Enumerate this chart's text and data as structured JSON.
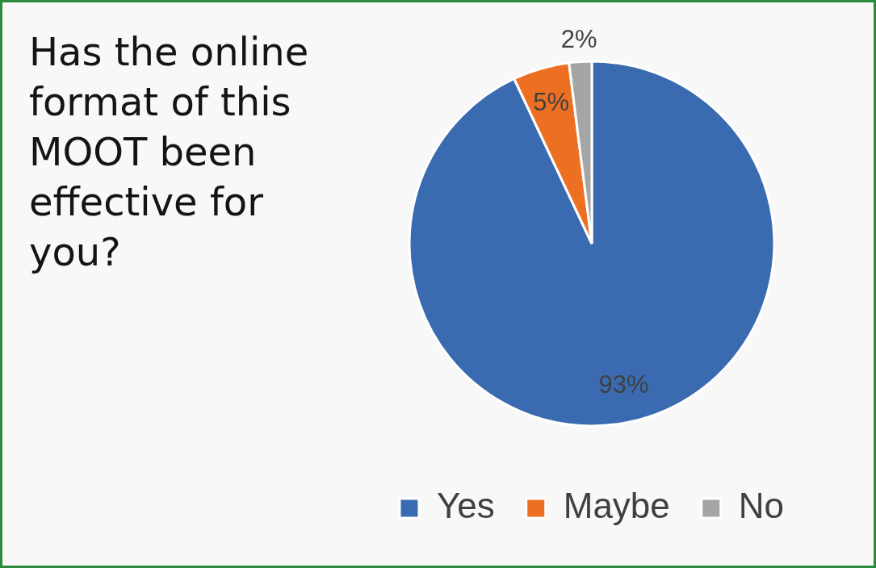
{
  "chart_data": {
    "type": "pie",
    "title": "Has the online format of this MOOT been effective for you?",
    "categories": [
      "Yes",
      "Maybe",
      "No"
    ],
    "values": [
      93,
      5,
      2
    ],
    "colors": [
      "#3a6bb0",
      "#ed7022",
      "#a5a5a5"
    ],
    "value_labels": [
      "93%",
      "5%",
      "2%"
    ],
    "legend": "bottom"
  }
}
